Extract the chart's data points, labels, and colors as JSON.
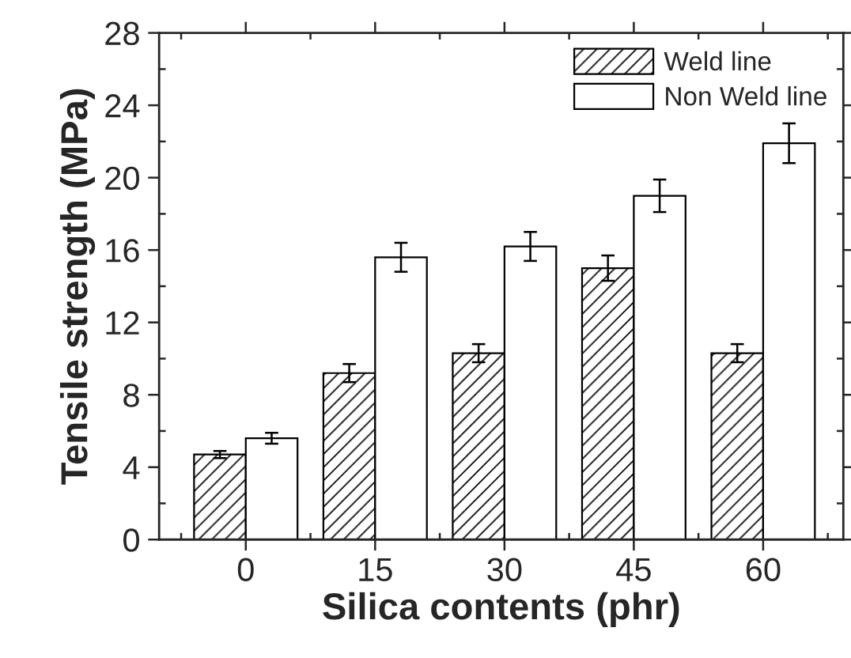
{
  "chart_data": {
    "type": "bar",
    "xlabel": "Silica contents (phr)",
    "ylabel": "Tensile strength (MPa)",
    "categories": [
      "0",
      "15",
      "30",
      "45",
      "60"
    ],
    "series": [
      {
        "name": "Weld line",
        "color": "#000000",
        "values": [
          4.7,
          9.2,
          10.3,
          15.0,
          10.3
        ],
        "errors": [
          0.2,
          0.5,
          0.5,
          0.7,
          0.5
        ]
      },
      {
        "name": "Non Weld line",
        "color": "#ffffff",
        "values": [
          5.6,
          15.6,
          16.2,
          19.0,
          21.9
        ],
        "errors": [
          0.3,
          0.8,
          0.8,
          0.9,
          1.1
        ]
      }
    ],
    "ylim": [
      0,
      28
    ],
    "yticks": [
      0,
      4,
      8,
      12,
      16,
      20,
      24,
      28
    ],
    "legend": "top right",
    "grid": false
  }
}
